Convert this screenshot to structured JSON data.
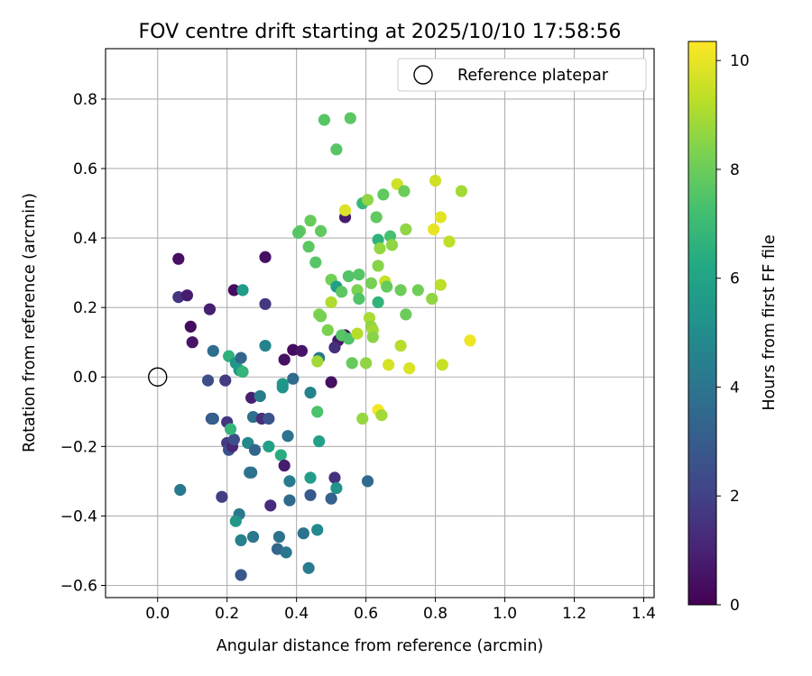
{
  "chart_data": {
    "type": "scatter",
    "title": "FOV centre drift starting at 2025/10/10 17:58:56",
    "xlabel": "Angular distance from reference (arcmin)",
    "ylabel": "Rotation from reference (arcmin)",
    "xlim": [
      -0.15,
      1.43
    ],
    "ylim": [
      -0.635,
      0.945
    ],
    "xticks": [
      0.0,
      0.2,
      0.4,
      0.6,
      0.8,
      1.0,
      1.2,
      1.4
    ],
    "xtick_labels": [
      "0.0",
      "0.2",
      "0.4",
      "0.6",
      "0.8",
      "1.0",
      "1.2",
      "1.4"
    ],
    "yticks": [
      -0.6,
      -0.4,
      -0.2,
      0.0,
      0.2,
      0.4,
      0.6,
      0.8
    ],
    "ytick_labels": [
      "−0.6",
      "−0.4",
      "−0.2",
      "0.0",
      "0.2",
      "0.4",
      "0.6",
      "0.8"
    ],
    "grid": true,
    "colorbar": {
      "label": "Hours from first FF file",
      "range": [
        0,
        10.35
      ],
      "ticks": [
        0,
        2,
        4,
        6,
        8,
        10
      ],
      "tick_labels": [
        "0",
        "2",
        "4",
        "6",
        "8",
        "10"
      ],
      "colormap": "viridis"
    },
    "legend": {
      "position": "top-right",
      "entries": [
        "Reference platepar"
      ]
    },
    "reference_point": {
      "x": 0.0,
      "y": 0.0
    },
    "points": [
      [
        0.06,
        0.34,
        0.4
      ],
      [
        0.31,
        0.345,
        0.4
      ],
      [
        0.06,
        0.23,
        1.6
      ],
      [
        0.085,
        0.235,
        0.8
      ],
      [
        0.22,
        0.25,
        0.3
      ],
      [
        0.31,
        0.21,
        1.7
      ],
      [
        0.15,
        0.195,
        0.9
      ],
      [
        0.095,
        0.145,
        0.3
      ],
      [
        0.1,
        0.1,
        0.6
      ],
      [
        0.245,
        0.25,
        5.6
      ],
      [
        0.54,
        0.46,
        0.8
      ],
      [
        0.52,
        0.105,
        0.6
      ],
      [
        0.54,
        0.12,
        0.4
      ],
      [
        0.51,
        0.085,
        1.4
      ],
      [
        0.5,
        -0.015,
        0.4
      ],
      [
        0.39,
        0.078,
        0.3
      ],
      [
        0.415,
        0.075,
        0.6
      ],
      [
        0.365,
        0.05,
        0.5
      ],
      [
        0.31,
        0.09,
        4.6
      ],
      [
        0.16,
        0.075,
        3.7
      ],
      [
        0.205,
        0.06,
        6.6
      ],
      [
        0.225,
        0.04,
        5.4
      ],
      [
        0.24,
        0.055,
        3.4
      ],
      [
        0.235,
        0.02,
        5.5
      ],
      [
        0.245,
        0.015,
        6.8
      ],
      [
        0.145,
        -0.01,
        2.5
      ],
      [
        0.195,
        -0.01,
        1.8
      ],
      [
        0.27,
        -0.06,
        0.9
      ],
      [
        0.295,
        -0.055,
        4.3
      ],
      [
        0.36,
        -0.02,
        5.6
      ],
      [
        0.36,
        -0.03,
        5.3
      ],
      [
        0.39,
        -0.005,
        3.6
      ],
      [
        0.44,
        -0.045,
        4.6
      ],
      [
        0.46,
        -0.1,
        7.4
      ],
      [
        0.465,
        0.055,
        4.2
      ],
      [
        0.46,
        0.045,
        8.9
      ],
      [
        0.155,
        -0.12,
        2.9
      ],
      [
        0.16,
        -0.12,
        3.1
      ],
      [
        0.2,
        -0.13,
        1.6
      ],
      [
        0.2,
        -0.19,
        1.8
      ],
      [
        0.205,
        -0.21,
        2.6
      ],
      [
        0.215,
        -0.2,
        1.1
      ],
      [
        0.22,
        -0.18,
        2.5
      ],
      [
        0.21,
        -0.15,
        6.8
      ],
      [
        0.275,
        -0.115,
        3.8
      ],
      [
        0.3,
        -0.12,
        1.4
      ],
      [
        0.32,
        -0.12,
        2.7
      ],
      [
        0.26,
        -0.19,
        4.8
      ],
      [
        0.28,
        -0.21,
        3.4
      ],
      [
        0.32,
        -0.2,
        5.9
      ],
      [
        0.355,
        -0.225,
        6.4
      ],
      [
        0.375,
        -0.17,
        3.9
      ],
      [
        0.365,
        -0.255,
        0.8
      ],
      [
        0.465,
        -0.185,
        5.9
      ],
      [
        0.065,
        -0.325,
        4.2
      ],
      [
        0.185,
        -0.345,
        1.9
      ],
      [
        0.265,
        -0.275,
        4.1
      ],
      [
        0.27,
        -0.275,
        3.9
      ],
      [
        0.325,
        -0.37,
        1.3
      ],
      [
        0.38,
        -0.3,
        4.3
      ],
      [
        0.38,
        -0.355,
        3.6
      ],
      [
        0.44,
        -0.29,
        5.7
      ],
      [
        0.44,
        -0.34,
        2.9
      ],
      [
        0.5,
        -0.35,
        3.2
      ],
      [
        0.51,
        -0.29,
        1.5
      ],
      [
        0.515,
        -0.32,
        5.2
      ],
      [
        0.605,
        -0.3,
        3.6
      ],
      [
        0.235,
        -0.395,
        4.1
      ],
      [
        0.225,
        -0.415,
        5.5
      ],
      [
        0.24,
        -0.47,
        4.5
      ],
      [
        0.275,
        -0.46,
        4.1
      ],
      [
        0.35,
        -0.46,
        3.9
      ],
      [
        0.345,
        -0.495,
        3.4
      ],
      [
        0.37,
        -0.505,
        4.1
      ],
      [
        0.42,
        -0.45,
        3.9
      ],
      [
        0.46,
        -0.44,
        4.9
      ],
      [
        0.435,
        -0.55,
        4.3
      ],
      [
        0.24,
        -0.57,
        2.8
      ],
      [
        0.48,
        0.74,
        7.6
      ],
      [
        0.555,
        0.745,
        7.7
      ],
      [
        0.515,
        0.655,
        7.6
      ],
      [
        0.54,
        0.48,
        9.8
      ],
      [
        0.41,
        0.42,
        7.8
      ],
      [
        0.405,
        0.415,
        7.6
      ],
      [
        0.44,
        0.45,
        7.9
      ],
      [
        0.47,
        0.42,
        7.8
      ],
      [
        0.435,
        0.375,
        7.7
      ],
      [
        0.455,
        0.33,
        7.6
      ],
      [
        0.465,
        0.18,
        8.4
      ],
      [
        0.47,
        0.175,
        8.2
      ],
      [
        0.49,
        0.135,
        8.3
      ],
      [
        0.5,
        0.28,
        8.1
      ],
      [
        0.515,
        0.26,
        5.8
      ],
      [
        0.53,
        0.245,
        7.7
      ],
      [
        0.53,
        0.12,
        7.6
      ],
      [
        0.55,
        0.29,
        7.5
      ],
      [
        0.55,
        0.11,
        7.5
      ],
      [
        0.5,
        0.215,
        9.1
      ],
      [
        0.56,
        0.04,
        7.9
      ],
      [
        0.575,
        0.125,
        9.2
      ],
      [
        0.575,
        0.25,
        8.3
      ],
      [
        0.58,
        0.295,
        7.6
      ],
      [
        0.58,
        0.225,
        7.5
      ],
      [
        0.59,
        0.5,
        6.9
      ],
      [
        0.605,
        0.51,
        8.6
      ],
      [
        0.6,
        0.04,
        8.6
      ],
      [
        0.61,
        0.17,
        9.0
      ],
      [
        0.615,
        0.145,
        8.6
      ],
      [
        0.615,
        0.27,
        8.2
      ],
      [
        0.62,
        0.135,
        8.9
      ],
      [
        0.62,
        0.115,
        8.5
      ],
      [
        0.63,
        0.46,
        7.8
      ],
      [
        0.635,
        0.395,
        6.6
      ],
      [
        0.635,
        0.32,
        8.5
      ],
      [
        0.635,
        0.215,
        6.7
      ],
      [
        0.64,
        0.37,
        8.7
      ],
      [
        0.65,
        0.525,
        7.8
      ],
      [
        0.655,
        0.275,
        9.5
      ],
      [
        0.66,
        0.26,
        7.9
      ],
      [
        0.665,
        0.035,
        9.7
      ],
      [
        0.67,
        0.405,
        7.3
      ],
      [
        0.675,
        0.38,
        8.6
      ],
      [
        0.69,
        0.555,
        9.6
      ],
      [
        0.7,
        0.25,
        8.0
      ],
      [
        0.7,
        0.09,
        9.2
      ],
      [
        0.71,
        0.535,
        8.0
      ],
      [
        0.715,
        0.18,
        8.0
      ],
      [
        0.715,
        0.425,
        8.6
      ],
      [
        0.725,
        0.025,
        9.8
      ],
      [
        0.75,
        0.25,
        8.1
      ],
      [
        0.59,
        -0.12,
        8.7
      ],
      [
        0.635,
        -0.095,
        10.2
      ],
      [
        0.645,
        -0.11,
        8.9
      ],
      [
        0.79,
        0.225,
        8.6
      ],
      [
        0.795,
        0.425,
        10.0
      ],
      [
        0.8,
        0.565,
        9.6
      ],
      [
        0.815,
        0.46,
        9.9
      ],
      [
        0.815,
        0.265,
        9.3
      ],
      [
        0.82,
        0.035,
        9.5
      ],
      [
        0.84,
        0.39,
        9.3
      ],
      [
        0.875,
        0.535,
        8.9
      ],
      [
        0.9,
        0.105,
        10.1
      ]
    ]
  }
}
